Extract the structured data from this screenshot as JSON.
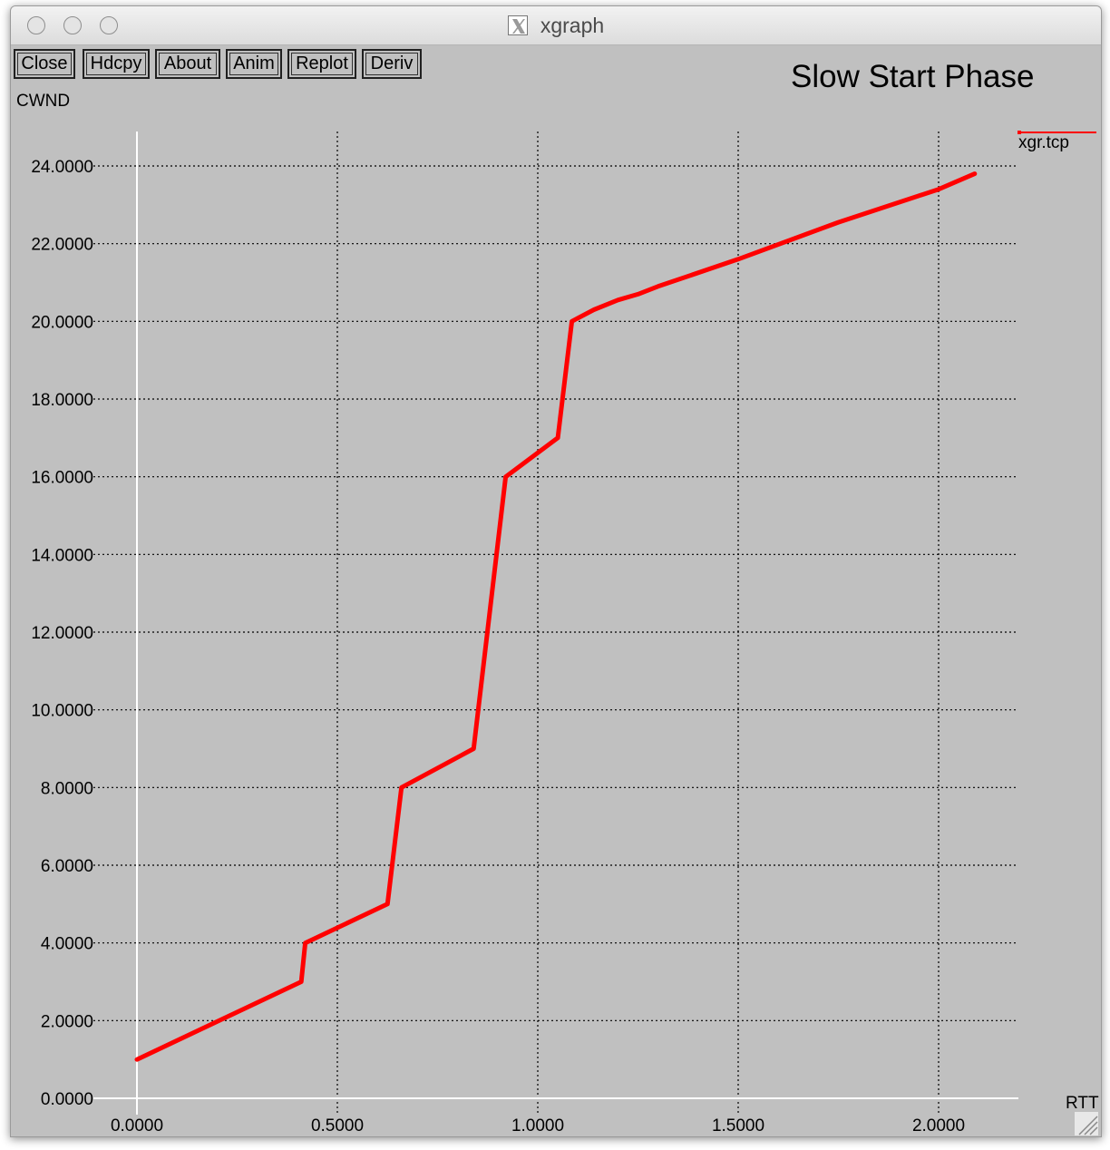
{
  "window": {
    "title": "xgraph",
    "buttons": [
      "Close",
      "Hdcpy",
      "About",
      "Anim",
      "Replot",
      "Deriv"
    ]
  },
  "chart_data": {
    "type": "line",
    "title": "Slow Start Phase",
    "xlabel": "RTT",
    "ylabel": "CWND",
    "xlim": [
      0,
      2.2
    ],
    "ylim": [
      0,
      24
    ],
    "grid": true,
    "legend_position": "top-right",
    "x_ticks": [
      0,
      0.5,
      1.0,
      1.5,
      2.0
    ],
    "x_tick_labels": [
      "0.0000",
      "0.5000",
      "1.0000",
      "1.5000",
      "2.0000"
    ],
    "y_ticks": [
      0,
      2,
      4,
      6,
      8,
      10,
      12,
      14,
      16,
      18,
      20,
      22,
      24
    ],
    "y_tick_labels": [
      "0.0000",
      "2.0000",
      "4.0000",
      "6.0000",
      "8.0000",
      "10.0000",
      "12.0000",
      "14.0000",
      "16.0000",
      "18.0000",
      "20.0000",
      "22.0000",
      "24.0000"
    ],
    "series": [
      {
        "name": "xgr.tcp",
        "color": "#ff0000",
        "x": [
          0.0,
          0.41,
          0.42,
          0.625,
          0.66,
          0.84,
          0.92,
          1.05,
          1.085,
          1.14,
          1.2,
          1.25,
          1.3,
          1.5,
          1.75,
          2.0,
          2.09
        ],
        "y": [
          1.0,
          3.0,
          4.0,
          5.0,
          8.0,
          9.0,
          16.0,
          17.0,
          20.0,
          20.3,
          20.55,
          20.7,
          20.9,
          21.6,
          22.55,
          23.4,
          23.8
        ]
      }
    ]
  }
}
